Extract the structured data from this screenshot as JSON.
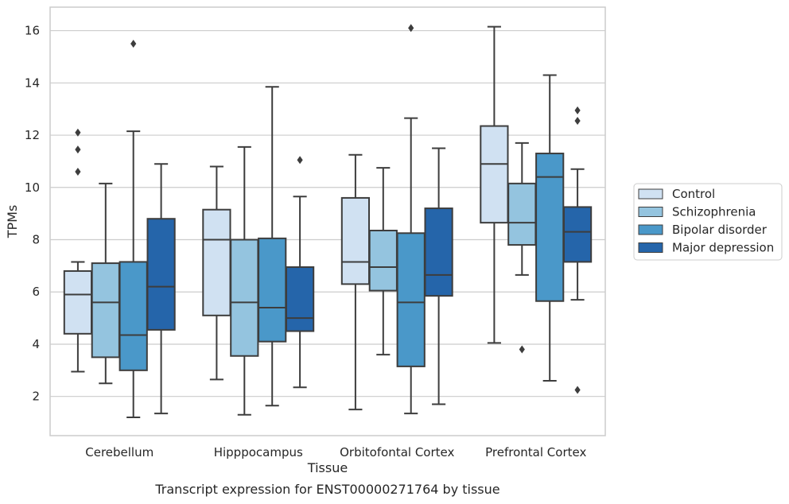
{
  "chart_data": {
    "type": "boxplot",
    "title": "",
    "caption": "Transcript expression for ENST00000271764 by tissue",
    "xlabel": "Tissue",
    "ylabel": "TPMs",
    "ylim": [
      0.5,
      16.9
    ],
    "yticks": [
      2,
      4,
      6,
      8,
      10,
      12,
      14,
      16
    ],
    "grid": "horizontal",
    "legend_position": "right",
    "categories": [
      "Cerebellum",
      "Hipppocampus",
      "Orbitofontal Cortex",
      "Prefrontal Cortex"
    ],
    "series": [
      {
        "name": "Control",
        "color": "#d0e1f2",
        "boxes": [
          {
            "whisker_low": 2.95,
            "q1": 4.4,
            "median": 5.9,
            "q3": 6.8,
            "whisker_high": 7.15,
            "outliers": [
              10.6,
              11.45,
              12.1
            ]
          },
          {
            "whisker_low": 2.65,
            "q1": 5.1,
            "median": 8.0,
            "q3": 9.15,
            "whisker_high": 10.8,
            "outliers": []
          },
          {
            "whisker_low": 1.5,
            "q1": 6.3,
            "median": 7.15,
            "q3": 9.6,
            "whisker_high": 11.25,
            "outliers": []
          },
          {
            "whisker_low": 4.05,
            "q1": 8.65,
            "median": 10.9,
            "q3": 12.35,
            "whisker_high": 16.15,
            "outliers": []
          }
        ]
      },
      {
        "name": "Schizophrenia",
        "color": "#94c4df",
        "boxes": [
          {
            "whisker_low": 2.5,
            "q1": 3.5,
            "median": 5.6,
            "q3": 7.1,
            "whisker_high": 10.15,
            "outliers": []
          },
          {
            "whisker_low": 1.3,
            "q1": 3.55,
            "median": 5.6,
            "q3": 8.0,
            "whisker_high": 11.55,
            "outliers": []
          },
          {
            "whisker_low": 3.6,
            "q1": 6.05,
            "median": 6.95,
            "q3": 8.35,
            "whisker_high": 10.75,
            "outliers": []
          },
          {
            "whisker_low": 6.65,
            "q1": 7.8,
            "median": 8.65,
            "q3": 10.15,
            "whisker_high": 11.7,
            "outliers": [
              3.8
            ]
          }
        ]
      },
      {
        "name": "Bipolar disorder",
        "color": "#4a98c9",
        "boxes": [
          {
            "whisker_low": 1.2,
            "q1": 3.0,
            "median": 4.35,
            "q3": 7.15,
            "whisker_high": 12.15,
            "outliers": [
              15.5
            ]
          },
          {
            "whisker_low": 1.65,
            "q1": 4.1,
            "median": 5.4,
            "q3": 8.05,
            "whisker_high": 13.85,
            "outliers": []
          },
          {
            "whisker_low": 1.35,
            "q1": 3.15,
            "median": 5.6,
            "q3": 8.25,
            "whisker_high": 12.65,
            "outliers": [
              16.1
            ]
          },
          {
            "whisker_low": 2.6,
            "q1": 5.65,
            "median": 10.4,
            "q3": 11.3,
            "whisker_high": 14.3,
            "outliers": []
          }
        ]
      },
      {
        "name": "Major depression",
        "color": "#2565aa",
        "boxes": [
          {
            "whisker_low": 1.35,
            "q1": 4.55,
            "median": 6.2,
            "q3": 8.8,
            "whisker_high": 10.9,
            "outliers": []
          },
          {
            "whisker_low": 2.35,
            "q1": 4.5,
            "median": 5.0,
            "q3": 6.95,
            "whisker_high": 9.65,
            "outliers": [
              11.05
            ]
          },
          {
            "whisker_low": 1.7,
            "q1": 5.85,
            "median": 6.65,
            "q3": 9.2,
            "whisker_high": 11.5,
            "outliers": []
          },
          {
            "whisker_low": 5.7,
            "q1": 7.15,
            "median": 8.3,
            "q3": 9.25,
            "whisker_high": 10.7,
            "outliers": [
              2.25,
              12.55,
              12.95
            ]
          }
        ]
      }
    ]
  }
}
